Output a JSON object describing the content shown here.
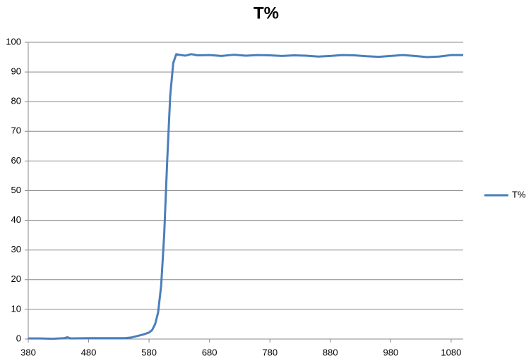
{
  "chart_data": {
    "type": "line",
    "title": "T%",
    "x": [
      380,
      400,
      420,
      440,
      445,
      450,
      480,
      500,
      520,
      540,
      550,
      560,
      570,
      580,
      585,
      590,
      595,
      600,
      605,
      610,
      615,
      620,
      625,
      630,
      640,
      650,
      660,
      680,
      700,
      720,
      740,
      760,
      780,
      800,
      820,
      840,
      860,
      880,
      900,
      920,
      940,
      960,
      980,
      1000,
      1020,
      1040,
      1060,
      1080,
      1100
    ],
    "series": [
      {
        "name": "T%",
        "color": "#4a7ebb",
        "values": [
          0.2,
          0.2,
          0.1,
          0.3,
          0.6,
          0.2,
          0.3,
          0.3,
          0.3,
          0.3,
          0.5,
          1,
          1.5,
          2.2,
          3,
          5,
          9,
          18,
          35,
          60,
          82,
          93,
          96,
          95.8,
          95.5,
          96,
          95.6,
          95.7,
          95.4,
          95.8,
          95.5,
          95.7,
          95.6,
          95.4,
          95.6,
          95.5,
          95.2,
          95.4,
          95.7,
          95.6,
          95.3,
          95.1,
          95.4,
          95.7,
          95.4,
          95.0,
          95.2,
          95.7,
          95.7
        ]
      }
    ],
    "xlim": [
      380,
      1100
    ],
    "xticks": [
      380,
      480,
      580,
      680,
      780,
      880,
      980,
      1080
    ],
    "ylim": [
      0,
      100
    ],
    "yticks": [
      0,
      10,
      20,
      30,
      40,
      50,
      60,
      70,
      80,
      90,
      100
    ],
    "grid": true,
    "legend": "right"
  }
}
